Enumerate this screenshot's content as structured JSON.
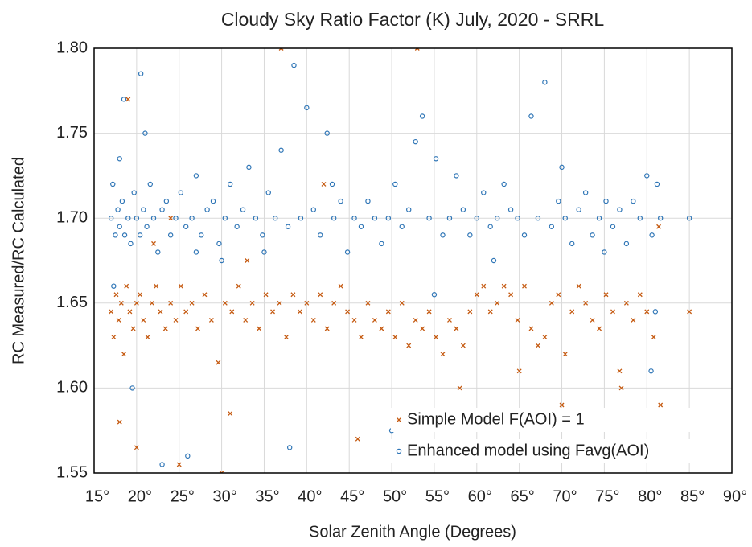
{
  "chart_data": {
    "type": "scatter",
    "title": "Cloudy Sky Ratio Factor (K) July, 2020 - SRRL",
    "x_label": "Solar Zenith Angle (Degrees)",
    "y_label": "RC Measured/RC Calculated",
    "xlim": [
      15,
      90
    ],
    "ylim": [
      1.55,
      1.8
    ],
    "xticks": [
      {
        "value": 15,
        "label": "15°"
      },
      {
        "value": 20,
        "label": "20°"
      },
      {
        "value": 25,
        "label": "25°"
      },
      {
        "value": 30,
        "label": "30°"
      },
      {
        "value": 35,
        "label": "35°"
      },
      {
        "value": 40,
        "label": "40°"
      },
      {
        "value": 45,
        "label": "45°"
      },
      {
        "value": 50,
        "label": "50°"
      },
      {
        "value": 55,
        "label": "55°"
      },
      {
        "value": 60,
        "label": "60°"
      },
      {
        "value": 65,
        "label": "65°"
      },
      {
        "value": 70,
        "label": "70°"
      },
      {
        "value": 75,
        "label": "75°"
      },
      {
        "value": 80,
        "label": "80°"
      },
      {
        "value": 85,
        "label": "85°"
      },
      {
        "value": 90,
        "label": "90°"
      }
    ],
    "yticks": [
      1.55,
      {
        "value": 1.6,
        "label": "1.60"
      },
      1.65,
      {
        "value": 1.7,
        "label": "1.70"
      },
      1.75,
      {
        "value": 1.8,
        "label": "1.80"
      }
    ],
    "grid": true,
    "legend": "lower right",
    "series": [
      {
        "name": "Simple Model F(AOI) = 1",
        "color": "#c55a11",
        "marker": "x",
        "x": [
          17,
          17.3,
          17.6,
          17.9,
          18.2,
          18.5,
          18.8,
          19.2,
          19.6,
          20,
          20.4,
          20.8,
          21.3,
          21.8,
          22.3,
          22.8,
          23.4,
          24,
          24.6,
          25.2,
          25.8,
          26.5,
          27.2,
          28,
          28.8,
          29.6,
          30.4,
          31.2,
          32,
          32.8,
          33.6,
          34.4,
          35.2,
          36,
          36.8,
          37.6,
          38.4,
          39.2,
          40,
          40.8,
          41.6,
          42.4,
          43.2,
          44,
          44.8,
          45.6,
          46.4,
          47.2,
          48,
          48.8,
          49.6,
          50.4,
          51.2,
          52,
          52.8,
          53.6,
          54.4,
          55.2,
          56,
          56.8,
          57.6,
          58.4,
          59.2,
          60,
          60.8,
          61.6,
          62.4,
          63.2,
          64,
          64.8,
          65.6,
          66.4,
          67.2,
          68,
          68.8,
          69.6,
          70.4,
          71.2,
          72,
          72.8,
          73.6,
          74.4,
          75.2,
          76,
          76.8,
          77.6,
          78.4,
          79.2,
          80,
          80.8,
          81.4,
          81.6,
          85,
          18,
          19,
          20,
          22,
          25,
          30,
          31,
          37,
          42,
          46,
          53,
          58,
          70,
          77,
          80.5,
          24,
          33,
          65
        ],
        "values": [
          1.645,
          1.63,
          1.655,
          1.64,
          1.65,
          1.62,
          1.66,
          1.645,
          1.635,
          1.65,
          1.655,
          1.64,
          1.63,
          1.65,
          1.66,
          1.645,
          1.635,
          1.65,
          1.64,
          1.66,
          1.645,
          1.65,
          1.635,
          1.655,
          1.64,
          1.615,
          1.65,
          1.645,
          1.66,
          1.64,
          1.65,
          1.635,
          1.655,
          1.645,
          1.65,
          1.63,
          1.655,
          1.645,
          1.65,
          1.64,
          1.655,
          1.635,
          1.65,
          1.66,
          1.645,
          1.64,
          1.63,
          1.65,
          1.64,
          1.635,
          1.645,
          1.63,
          1.65,
          1.625,
          1.64,
          1.635,
          1.645,
          1.63,
          1.62,
          1.64,
          1.635,
          1.625,
          1.645,
          1.655,
          1.66,
          1.645,
          1.65,
          1.66,
          1.655,
          1.64,
          1.66,
          1.635,
          1.625,
          1.63,
          1.65,
          1.655,
          1.62,
          1.645,
          1.66,
          1.65,
          1.64,
          1.635,
          1.655,
          1.645,
          1.61,
          1.65,
          1.64,
          1.655,
          1.645,
          1.63,
          1.695,
          1.59,
          1.645,
          1.58,
          1.77,
          1.565,
          1.685,
          1.555,
          1.55,
          1.585,
          1.8,
          1.72,
          1.57,
          1.8,
          1.6,
          1.59,
          1.6,
          1.58,
          1.7,
          1.675,
          1.61
        ]
      },
      {
        "name": "Enhanced model using Favg(AOI)",
        "color": "#2e75b6",
        "marker": "o",
        "x": [
          17,
          17.2,
          17.5,
          17.8,
          18,
          18.3,
          18.6,
          19,
          19.3,
          19.7,
          20,
          20.4,
          20.8,
          21.2,
          21.6,
          22,
          22.5,
          23,
          23.5,
          24,
          24.6,
          25.2,
          25.8,
          26.5,
          27,
          27.6,
          28.3,
          29,
          29.7,
          30.4,
          31,
          31.8,
          32.5,
          33.2,
          34,
          34.8,
          35.5,
          36.3,
          37,
          37.8,
          38.5,
          39.3,
          40,
          40.8,
          41.6,
          42.4,
          43.2,
          44,
          44.8,
          45.6,
          46.4,
          47.2,
          48,
          48.8,
          49.6,
          50.4,
          51.2,
          52,
          52.8,
          53.6,
          54.4,
          55.2,
          56,
          56.8,
          57.6,
          58.4,
          59.2,
          60,
          60.8,
          61.6,
          62.4,
          63.2,
          64,
          64.8,
          65.6,
          66.4,
          67.2,
          68,
          68.8,
          69.6,
          70.4,
          71.2,
          72,
          72.8,
          73.6,
          74.4,
          75.2,
          76,
          76.8,
          77.6,
          78.4,
          79.2,
          80,
          80.6,
          81.2,
          81.6,
          85,
          18.5,
          19.5,
          20.5,
          23,
          26,
          30,
          38,
          50,
          55,
          80.5,
          81,
          17.3,
          18,
          21,
          27,
          35,
          43,
          62,
          70,
          75
        ],
        "values": [
          1.7,
          1.72,
          1.69,
          1.705,
          1.695,
          1.71,
          1.69,
          1.7,
          1.685,
          1.715,
          1.7,
          1.69,
          1.705,
          1.695,
          1.72,
          1.7,
          1.68,
          1.705,
          1.71,
          1.69,
          1.7,
          1.715,
          1.695,
          1.7,
          1.725,
          1.69,
          1.705,
          1.71,
          1.685,
          1.7,
          1.72,
          1.695,
          1.705,
          1.73,
          1.7,
          1.69,
          1.715,
          1.7,
          1.74,
          1.695,
          1.79,
          1.7,
          1.765,
          1.705,
          1.69,
          1.75,
          1.7,
          1.71,
          1.68,
          1.7,
          1.695,
          1.71,
          1.7,
          1.685,
          1.7,
          1.72,
          1.695,
          1.705,
          1.745,
          1.76,
          1.7,
          1.735,
          1.69,
          1.7,
          1.725,
          1.705,
          1.69,
          1.7,
          1.715,
          1.695,
          1.7,
          1.72,
          1.705,
          1.7,
          1.69,
          1.76,
          1.7,
          1.78,
          1.695,
          1.71,
          1.7,
          1.685,
          1.705,
          1.715,
          1.69,
          1.7,
          1.71,
          1.695,
          1.705,
          1.685,
          1.71,
          1.7,
          1.725,
          1.69,
          1.72,
          1.7,
          1.7,
          1.77,
          1.6,
          1.785,
          1.555,
          1.56,
          1.675,
          1.565,
          1.575,
          1.655,
          1.61,
          1.645,
          1.66,
          1.735,
          1.75,
          1.68,
          1.68,
          1.72,
          1.675,
          1.73,
          1.68
        ]
      }
    ]
  }
}
